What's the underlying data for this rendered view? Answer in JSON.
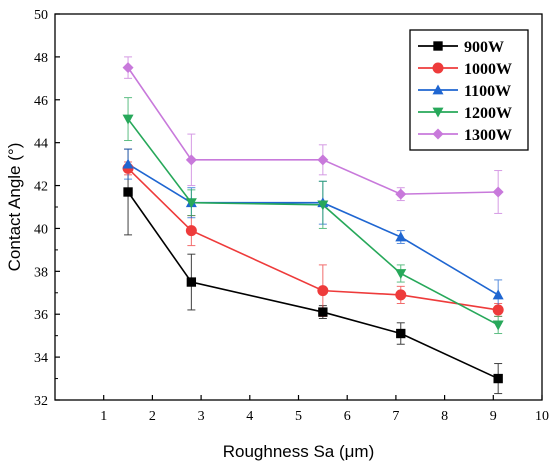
{
  "chart_data": {
    "type": "line",
    "xlabel": "Roughness Sa (μm)",
    "ylabel": "Contact Angle (°)",
    "xlim": [
      0,
      10
    ],
    "ylim": [
      32,
      50
    ],
    "xticks": [
      1,
      2,
      3,
      4,
      5,
      6,
      7,
      8,
      9,
      10
    ],
    "yticks": [
      32,
      34,
      36,
      38,
      40,
      42,
      44,
      46,
      48,
      50
    ],
    "grid": false,
    "legend_position": "top-right",
    "series": [
      {
        "name": "900W",
        "color": "#000000",
        "marker": "square",
        "x": [
          1.5,
          2.8,
          5.5,
          7.1,
          9.1
        ],
        "y": [
          41.7,
          37.5,
          36.1,
          35.1,
          33.0
        ],
        "error": [
          2.0,
          1.3,
          0.3,
          0.5,
          0.7
        ]
      },
      {
        "name": "1000W",
        "color": "#ee3b3b",
        "marker": "circle",
        "x": [
          1.5,
          2.8,
          5.5,
          7.1,
          9.1
        ],
        "y": [
          42.8,
          39.9,
          37.1,
          36.9,
          36.2
        ],
        "error": [
          0.3,
          0.7,
          1.2,
          0.4,
          0.3
        ]
      },
      {
        "name": "1100W",
        "color": "#1f66d1",
        "marker": "triangle-up",
        "x": [
          1.5,
          2.8,
          5.5,
          7.1,
          9.1
        ],
        "y": [
          43.0,
          41.2,
          41.2,
          39.6,
          36.9
        ],
        "error": [
          0.7,
          0.7,
          1.0,
          0.3,
          0.7
        ]
      },
      {
        "name": "1200W",
        "color": "#27a85a",
        "marker": "triangle-down",
        "x": [
          1.5,
          2.8,
          5.5,
          7.1,
          9.1
        ],
        "y": [
          45.1,
          41.2,
          41.1,
          37.9,
          35.5
        ],
        "error": [
          1.0,
          0.6,
          1.1,
          0.4,
          0.4
        ]
      },
      {
        "name": "1300W",
        "color": "#c879db",
        "marker": "diamond",
        "x": [
          1.5,
          2.8,
          5.5,
          7.1,
          9.1
        ],
        "y": [
          47.5,
          43.2,
          43.2,
          41.6,
          41.7
        ],
        "error": [
          0.5,
          1.2,
          0.7,
          0.3,
          1.0
        ]
      }
    ]
  }
}
